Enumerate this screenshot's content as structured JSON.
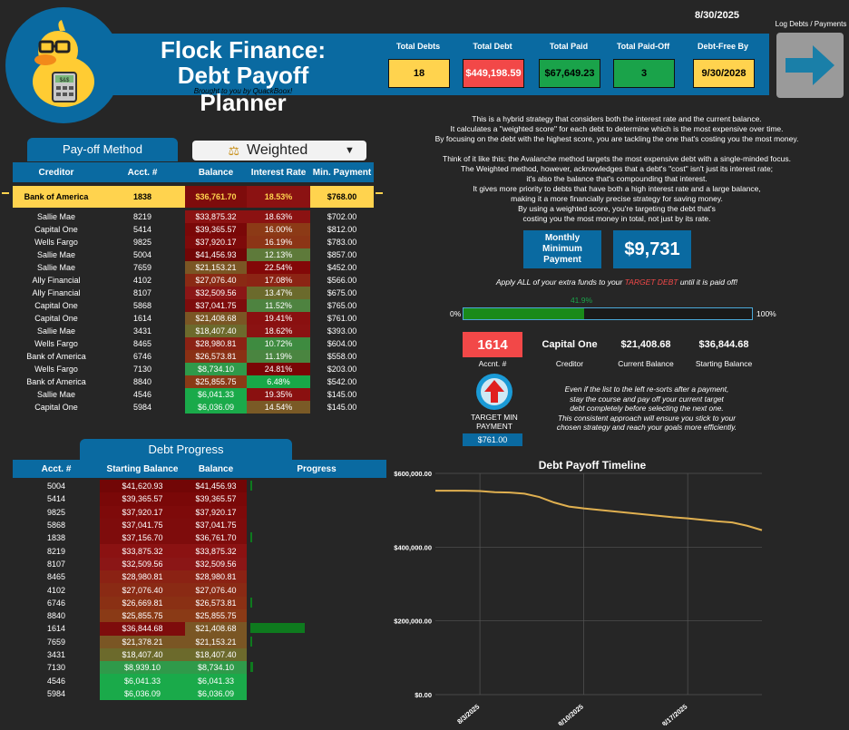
{
  "header": {
    "title_line1": "Flock Finance:",
    "title_line2": "Debt Payoff Planner",
    "subtitle": "Brought to you by QuackBoox!",
    "date": "8/30/2025",
    "log_label": "Log Debts / Payments",
    "logo_text": "$&$"
  },
  "kpis": [
    {
      "label": "Total Debts",
      "value": "18",
      "color": "#ffd34e",
      "text": "#000"
    },
    {
      "label": "Total Debt",
      "value": "$449,198.59",
      "color": "#f24848",
      "text": "#fff"
    },
    {
      "label": "Total Paid",
      "value": "$67,649.23",
      "color": "#1aa34a",
      "text": "#000"
    },
    {
      "label": "Total Paid-Off",
      "value": "3",
      "color": "#1aa34a",
      "text": "#000"
    },
    {
      "label": "Debt-Free By",
      "value": "9/30/2028",
      "color": "#ffd34e",
      "text": "#000"
    }
  ],
  "payoff": {
    "tab": "Pay-off Method",
    "method": "Weighted",
    "method_icon": "scales-icon",
    "headers": [
      "Creditor",
      "Acct. #",
      "Balance",
      "Interest Rate",
      "Min. Payment"
    ],
    "highlight": {
      "creditor": "Bank of America",
      "acct": "1838",
      "balance": "$36,761.70",
      "rate": "18.53%",
      "min": "$768.00"
    },
    "rows": [
      {
        "creditor": "Sallie Mae",
        "acct": "8219",
        "balance": "$33,875.32",
        "rate": "18.63%",
        "min": "$702.00",
        "bc": "#8b1212",
        "rc": "#8b1212"
      },
      {
        "creditor": "Capital One",
        "acct": "5414",
        "balance": "$39,365.57",
        "rate": "16.00%",
        "min": "$812.00",
        "bc": "#7a0808",
        "rc": "#8c3a16"
      },
      {
        "creditor": "Wells Fargo",
        "acct": "9825",
        "balance": "$37,920.17",
        "rate": "16.19%",
        "min": "$783.00",
        "bc": "#7e0a0a",
        "rc": "#8c3516"
      },
      {
        "creditor": "Sallie Mae",
        "acct": "5004",
        "balance": "$41,456.93",
        "rate": "12.13%",
        "min": "$857.00",
        "bc": "#720606",
        "rc": "#5e7a3a"
      },
      {
        "creditor": "Sallie Mae",
        "acct": "7659",
        "balance": "$21,153.21",
        "rate": "22.54%",
        "min": "$452.00",
        "bc": "#7a5624",
        "rc": "#830808"
      },
      {
        "creditor": "Ally Financial",
        "acct": "4102",
        "balance": "$27,076.40",
        "rate": "17.08%",
        "min": "$566.00",
        "bc": "#8a2a14",
        "rc": "#8c2414"
      },
      {
        "creditor": "Ally Financial",
        "acct": "8107",
        "balance": "$32,509.56",
        "rate": "13.47%",
        "min": "$675.00",
        "bc": "#8b1616",
        "rc": "#6b6a2c"
      },
      {
        "creditor": "Capital One",
        "acct": "5868",
        "balance": "$37,041.75",
        "rate": "11.52%",
        "min": "$765.00",
        "bc": "#7e0c0c",
        "rc": "#4e8340"
      },
      {
        "creditor": "Capital One",
        "acct": "1614",
        "balance": "$21,408.68",
        "rate": "19.41%",
        "min": "$761.00",
        "bc": "#7a5624",
        "rc": "#8a1010"
      },
      {
        "creditor": "Sallie Mae",
        "acct": "3431",
        "balance": "$18,407.40",
        "rate": "18.62%",
        "min": "$393.00",
        "bc": "#6c6a2c",
        "rc": "#8b1212"
      },
      {
        "creditor": "Wells Fargo",
        "acct": "8465",
        "balance": "$28,980.81",
        "rate": "10.72%",
        "min": "$604.00",
        "bc": "#8b2214",
        "rc": "#3e8b40"
      },
      {
        "creditor": "Bank of America",
        "acct": "6746",
        "balance": "$26,573.81",
        "rate": "11.19%",
        "min": "$558.00",
        "bc": "#8a3014",
        "rc": "#4a8540"
      },
      {
        "creditor": "Wells Fargo",
        "acct": "7130",
        "balance": "$8,734.10",
        "rate": "24.81%",
        "min": "$203.00",
        "bc": "#2f9a4a",
        "rc": "#7a0606"
      },
      {
        "creditor": "Bank of America",
        "acct": "8840",
        "balance": "$25,855.75",
        "rate": "6.48%",
        "min": "$542.00",
        "bc": "#8a3a16",
        "rc": "#18a848"
      },
      {
        "creditor": "Sallie Mae",
        "acct": "4546",
        "balance": "$6,041.33",
        "rate": "19.35%",
        "min": "$145.00",
        "bc": "#1aaa4a",
        "rc": "#8a1010"
      },
      {
        "creditor": "Capital One",
        "acct": "5984",
        "balance": "$6,036.09",
        "rate": "14.54%",
        "min": "$145.00",
        "bc": "#1aaa4a",
        "rc": "#7a5a26"
      }
    ]
  },
  "explain": {
    "p1": [
      "This is a hybrid strategy that considers both the interest rate and the current balance.",
      "It calculates a \"weighted score\" for each debt to determine which is the most expensive over time.",
      "By focusing on the debt with the highest score, you are tackling the one that's costing you the most money."
    ],
    "p2": [
      "Think of it like this: the Avalanche method targets the most expensive debt with a single-minded focus.",
      "The Weighted method, however, acknowledges that a debt's \"cost\" isn't just its interest rate;",
      "it's also the balance that's compounding that interest.",
      "It gives more priority to debts that have both a high interest rate and a large balance,",
      "making it a more financially precise strategy for saving money.",
      "By using a weighted score, you're targeting the debt that's",
      "costing you the most money in total, not just by its rate."
    ]
  },
  "monthly": {
    "label": "Monthly Minimum Payment",
    "value": "$9,731"
  },
  "apply": {
    "before": "Apply ALL of your extra funds to your ",
    "emph": "TARGET DEBT",
    "after": " until it is paid off!"
  },
  "progress": {
    "value": 41.9,
    "label": "41.9%",
    "min_label": "0%",
    "max_label": "100%"
  },
  "target": {
    "acct": "1614",
    "acct_label": "Accnt. #",
    "creditor": "Capital One",
    "creditor_label": "Creditor",
    "current": "$21,408.68",
    "current_label": "Current Balance",
    "starting": "$36,844.68",
    "starting_label": "Starting Balance",
    "min_label": "TARGET MIN PAYMENT",
    "min_value": "$761.00",
    "note": [
      "Even if the list to the left re-sorts after a payment,",
      "stay the course and pay off your current target",
      "debt completely before selecting the next one.",
      "This consistent approach will ensure you stick to your",
      "chosen strategy and reach your goals more efficiently."
    ]
  },
  "debt_progress": {
    "tab": "Debt Progress",
    "headers": [
      "Acct. #",
      "Starting Balance",
      "Balance",
      "Progress"
    ],
    "rows": [
      {
        "acct": "5004",
        "start": "$41,620.93",
        "bal": "$41,456.93",
        "sc": "#720606",
        "bcol": "#720606",
        "p": 0.4
      },
      {
        "acct": "5414",
        "start": "$39,365.57",
        "bal": "$39,365.57",
        "sc": "#7a0808",
        "bcol": "#7a0808",
        "p": 0
      },
      {
        "acct": "9825",
        "start": "$37,920.17",
        "bal": "$37,920.17",
        "sc": "#7e0a0a",
        "bcol": "#7e0a0a",
        "p": 0
      },
      {
        "acct": "5868",
        "start": "$37,041.75",
        "bal": "$37,041.75",
        "sc": "#7e0c0c",
        "bcol": "#7e0c0c",
        "p": 0
      },
      {
        "acct": "1838",
        "start": "$37,156.70",
        "bal": "$36,761.70",
        "sc": "#7e0c0c",
        "bcol": "#7e0c0c",
        "p": 1.1
      },
      {
        "acct": "8219",
        "start": "$33,875.32",
        "bal": "$33,875.32",
        "sc": "#8b1212",
        "bcol": "#8b1212",
        "p": 0
      },
      {
        "acct": "8107",
        "start": "$32,509.56",
        "bal": "$32,509.56",
        "sc": "#8b1616",
        "bcol": "#8b1616",
        "p": 0
      },
      {
        "acct": "8465",
        "start": "$28,980.81",
        "bal": "$28,980.81",
        "sc": "#8b2214",
        "bcol": "#8b2214",
        "p": 0
      },
      {
        "acct": "4102",
        "start": "$27,076.40",
        "bal": "$27,076.40",
        "sc": "#8a2a14",
        "bcol": "#8a2a14",
        "p": 0
      },
      {
        "acct": "6746",
        "start": "$26,669.81",
        "bal": "$26,573.81",
        "sc": "#8a3014",
        "bcol": "#8a3014",
        "p": 0.4
      },
      {
        "acct": "8840",
        "start": "$25,855.75",
        "bal": "$25,855.75",
        "sc": "#8a3a16",
        "bcol": "#8a3a16",
        "p": 0
      },
      {
        "acct": "1614",
        "start": "$36,844.68",
        "bal": "$21,408.68",
        "sc": "#7e0c0c",
        "bcol": "#7a5624",
        "p": 41.9
      },
      {
        "acct": "7659",
        "start": "$21,378.21",
        "bal": "$21,153.21",
        "sc": "#7a5624",
        "bcol": "#7a5624",
        "p": 1.1
      },
      {
        "acct": "3431",
        "start": "$18,407.40",
        "bal": "$18,407.40",
        "sc": "#6c6a2c",
        "bcol": "#6c6a2c",
        "p": 0
      },
      {
        "acct": "7130",
        "start": "$8,939.10",
        "bal": "$8,734.10",
        "sc": "#2f9a4a",
        "bcol": "#2f9a4a",
        "p": 2.3
      },
      {
        "acct": "4546",
        "start": "$6,041.33",
        "bal": "$6,041.33",
        "sc": "#1aaa4a",
        "bcol": "#1aaa4a",
        "p": 0
      },
      {
        "acct": "5984",
        "start": "$6,036.09",
        "bal": "$6,036.09",
        "sc": "#1aaa4a",
        "bcol": "#1aaa4a",
        "p": 0
      }
    ]
  },
  "chart_data": {
    "type": "line",
    "title": "Debt Payoff Timeline",
    "ylim": [
      0,
      600000
    ],
    "yticks": [
      0,
      200000,
      400000,
      600000
    ],
    "ytick_labels": [
      "$0.00",
      "$200,000.00",
      "$400,000.00",
      "$600,000.00"
    ],
    "xticks": [
      3,
      10,
      17
    ],
    "xtick_labels": [
      "8/3/2025",
      "8/10/2025",
      "8/17/2025"
    ],
    "xlim": [
      0,
      22
    ],
    "x": [
      0,
      1,
      2,
      3,
      4,
      5,
      6,
      7,
      8,
      9,
      10,
      11,
      12,
      13,
      14,
      15,
      16,
      17,
      18,
      19,
      20,
      21,
      22
    ],
    "values": [
      553000,
      553000,
      553000,
      552000,
      549000,
      548000,
      545000,
      536000,
      521000,
      510000,
      505000,
      501000,
      497000,
      493000,
      489000,
      485000,
      481000,
      478000,
      474000,
      470000,
      467000,
      458000,
      446000
    ],
    "series_color": "#e0b050",
    "grid": true
  }
}
